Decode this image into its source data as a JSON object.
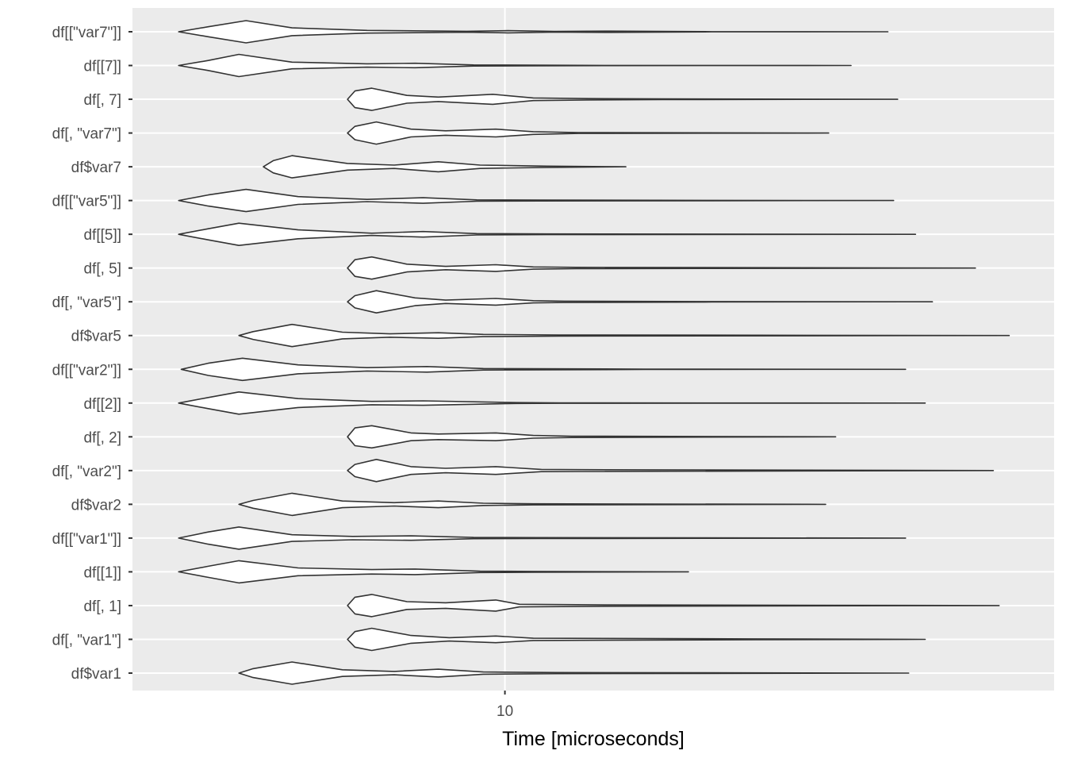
{
  "chart_data": {
    "type": "violin",
    "orientation": "horizontal",
    "xlabel": "Time [microseconds]",
    "ylabel": "",
    "x_scale": "log10",
    "xlim": [
      2.87,
      63.0
    ],
    "x_ticks": [
      10
    ],
    "x_tick_labels": [
      "10"
    ],
    "grid": true,
    "panel_background": "#ebebeb",
    "grid_color": "#ffffff",
    "violin_fill": "#ffffff",
    "violin_stroke": "#333333",
    "categories": [
      "df[[\"var7\"]]",
      "df[[7]]",
      "df[, 7]",
      "df[, \"var7\"]",
      "df$var7",
      "df[[\"var5\"]]",
      "df[[5]]",
      "df[, 5]",
      "df[, \"var5\"]",
      "df$var5",
      "df[[\"var2\"]]",
      "df[[2]]",
      "df[, 2]",
      "df[, \"var2\"]",
      "df$var2",
      "df[[\"var1\"]]",
      "df[[1]]",
      "df[, 1]",
      "df[, \"var1\"]",
      "df$var1"
    ],
    "series": [
      {
        "min": 3.35,
        "max": 36.1,
        "profile": [
          [
            3.35,
            0
          ],
          [
            3.7,
            0.45
          ],
          [
            4.2,
            1.0
          ],
          [
            4.9,
            0.35
          ],
          [
            6.3,
            0.12
          ],
          [
            8.8,
            0.04
          ],
          [
            10.1,
            0.1
          ],
          [
            11.8,
            0.03
          ],
          [
            14.2,
            0.06
          ],
          [
            20,
            0.01
          ],
          [
            36.1,
            0
          ]
        ]
      },
      {
        "min": 3.35,
        "max": 31.9,
        "profile": [
          [
            3.35,
            0
          ],
          [
            3.7,
            0.45
          ],
          [
            4.1,
            1.0
          ],
          [
            4.9,
            0.3
          ],
          [
            6.3,
            0.15
          ],
          [
            7.4,
            0.2
          ],
          [
            9.0,
            0.05
          ],
          [
            10.8,
            0.03
          ],
          [
            14,
            0.01
          ],
          [
            31.9,
            0
          ]
        ]
      },
      {
        "min": 5.9,
        "max": 37.3,
        "profile": [
          [
            5.9,
            0
          ],
          [
            6.05,
            0.75
          ],
          [
            6.4,
            1.0
          ],
          [
            7.2,
            0.35
          ],
          [
            8.0,
            0.2
          ],
          [
            9.6,
            0.45
          ],
          [
            11.0,
            0.12
          ],
          [
            13.2,
            0.06
          ],
          [
            17,
            0.03
          ],
          [
            37.3,
            0
          ]
        ]
      },
      {
        "min": 5.9,
        "max": 29.6,
        "profile": [
          [
            5.9,
            0
          ],
          [
            6.05,
            0.6
          ],
          [
            6.5,
            1.0
          ],
          [
            7.3,
            0.35
          ],
          [
            8.2,
            0.2
          ],
          [
            9.7,
            0.35
          ],
          [
            11.0,
            0.12
          ],
          [
            12.8,
            0.04
          ],
          [
            29.6,
            0
          ]
        ]
      },
      {
        "min": 4.45,
        "max": 15.0,
        "profile": [
          [
            4.45,
            0
          ],
          [
            4.6,
            0.55
          ],
          [
            4.9,
            1.0
          ],
          [
            5.9,
            0.3
          ],
          [
            6.9,
            0.15
          ],
          [
            8.0,
            0.45
          ],
          [
            9.2,
            0.15
          ],
          [
            11.5,
            0.06
          ],
          [
            15.0,
            0
          ]
        ]
      },
      {
        "min": 3.35,
        "max": 36.8,
        "profile": [
          [
            3.35,
            0
          ],
          [
            3.7,
            0.5
          ],
          [
            4.2,
            1.0
          ],
          [
            5.0,
            0.35
          ],
          [
            6.3,
            0.1
          ],
          [
            7.6,
            0.25
          ],
          [
            9.1,
            0.06
          ],
          [
            11.2,
            0.04
          ],
          [
            20,
            0.02
          ],
          [
            36.8,
            0
          ]
        ]
      },
      {
        "min": 3.35,
        "max": 39.6,
        "profile": [
          [
            3.35,
            0
          ],
          [
            3.7,
            0.5
          ],
          [
            4.1,
            1.0
          ],
          [
            5.0,
            0.4
          ],
          [
            6.4,
            0.1
          ],
          [
            7.6,
            0.25
          ],
          [
            9.1,
            0.06
          ],
          [
            11.5,
            0.03
          ],
          [
            39.6,
            0
          ]
        ]
      },
      {
        "min": 5.9,
        "max": 48.4,
        "profile": [
          [
            5.9,
            0
          ],
          [
            6.05,
            0.75
          ],
          [
            6.4,
            1.0
          ],
          [
            7.2,
            0.35
          ],
          [
            8.2,
            0.15
          ],
          [
            9.7,
            0.3
          ],
          [
            11.0,
            0.1
          ],
          [
            12.7,
            0.06
          ],
          [
            48.4,
            0
          ]
        ]
      },
      {
        "min": 5.9,
        "max": 41.9,
        "profile": [
          [
            5.9,
            0
          ],
          [
            6.05,
            0.55
          ],
          [
            6.5,
            1.0
          ],
          [
            7.4,
            0.35
          ],
          [
            8.2,
            0.15
          ],
          [
            9.7,
            0.3
          ],
          [
            11.0,
            0.1
          ],
          [
            12.2,
            0.06
          ],
          [
            20,
            0.02
          ],
          [
            41.9,
            0
          ]
        ]
      },
      {
        "min": 4.1,
        "max": 54.2,
        "profile": [
          [
            4.1,
            0
          ],
          [
            4.3,
            0.35
          ],
          [
            4.9,
            1.0
          ],
          [
            5.8,
            0.3
          ],
          [
            6.8,
            0.15
          ],
          [
            8.0,
            0.25
          ],
          [
            9.3,
            0.1
          ],
          [
            12.0,
            0.05
          ],
          [
            54.2,
            0
          ]
        ]
      },
      {
        "min": 3.38,
        "max": 38.3,
        "profile": [
          [
            3.38,
            0
          ],
          [
            3.7,
            0.55
          ],
          [
            4.15,
            1.0
          ],
          [
            5.0,
            0.4
          ],
          [
            6.3,
            0.15
          ],
          [
            7.7,
            0.25
          ],
          [
            9.3,
            0.07
          ],
          [
            16,
            0.02
          ],
          [
            38.3,
            0
          ]
        ]
      },
      {
        "min": 3.35,
        "max": 40.9,
        "profile": [
          [
            3.35,
            0
          ],
          [
            3.7,
            0.5
          ],
          [
            4.1,
            1.0
          ],
          [
            5.0,
            0.4
          ],
          [
            6.4,
            0.15
          ],
          [
            7.6,
            0.2
          ],
          [
            10.4,
            0.04
          ],
          [
            12,
            0.02
          ],
          [
            40.9,
            0
          ]
        ]
      },
      {
        "min": 5.9,
        "max": 30.3,
        "profile": [
          [
            5.9,
            0
          ],
          [
            6.05,
            0.8
          ],
          [
            6.4,
            1.0
          ],
          [
            7.3,
            0.35
          ],
          [
            8.0,
            0.25
          ],
          [
            9.7,
            0.35
          ],
          [
            11.0,
            0.12
          ],
          [
            12.5,
            0.06
          ],
          [
            30.3,
            0
          ]
        ]
      },
      {
        "min": 5.9,
        "max": 51.4,
        "profile": [
          [
            5.9,
            0
          ],
          [
            6.05,
            0.55
          ],
          [
            6.5,
            1.0
          ],
          [
            7.3,
            0.35
          ],
          [
            8.2,
            0.2
          ],
          [
            9.7,
            0.35
          ],
          [
            11.3,
            0.1
          ],
          [
            12.9,
            0.08
          ],
          [
            51.4,
            0
          ]
        ]
      },
      {
        "min": 4.1,
        "max": 29.3,
        "profile": [
          [
            4.1,
            0
          ],
          [
            4.3,
            0.35
          ],
          [
            4.9,
            1.0
          ],
          [
            5.8,
            0.3
          ],
          [
            6.9,
            0.15
          ],
          [
            8.0,
            0.3
          ],
          [
            9.3,
            0.1
          ],
          [
            11.0,
            0.05
          ],
          [
            29.3,
            0
          ]
        ]
      },
      {
        "min": 3.35,
        "max": 38.3,
        "profile": [
          [
            3.35,
            0
          ],
          [
            3.7,
            0.55
          ],
          [
            4.1,
            1.0
          ],
          [
            4.9,
            0.3
          ],
          [
            6.0,
            0.15
          ],
          [
            7.3,
            0.2
          ],
          [
            9.0,
            0.06
          ],
          [
            11.2,
            0.04
          ],
          [
            38.3,
            0
          ]
        ]
      },
      {
        "min": 3.35,
        "max": 18.5,
        "profile": [
          [
            3.35,
            0
          ],
          [
            3.7,
            0.5
          ],
          [
            4.1,
            1.0
          ],
          [
            5.0,
            0.35
          ],
          [
            6.4,
            0.2
          ],
          [
            7.4,
            0.25
          ],
          [
            9.2,
            0.06
          ],
          [
            11.0,
            0.04
          ],
          [
            18.5,
            0
          ]
        ]
      },
      {
        "min": 5.9,
        "max": 52.4,
        "profile": [
          [
            5.9,
            0
          ],
          [
            6.05,
            0.75
          ],
          [
            6.4,
            1.0
          ],
          [
            7.2,
            0.35
          ],
          [
            8.2,
            0.25
          ],
          [
            9.7,
            0.5
          ],
          [
            10.5,
            0.12
          ],
          [
            14,
            0.06
          ],
          [
            52.4,
            0
          ]
        ]
      },
      {
        "min": 5.9,
        "max": 40.9,
        "profile": [
          [
            5.9,
            0
          ],
          [
            6.05,
            0.7
          ],
          [
            6.4,
            1.0
          ],
          [
            7.3,
            0.35
          ],
          [
            8.3,
            0.15
          ],
          [
            9.7,
            0.3
          ],
          [
            11.0,
            0.1
          ],
          [
            23,
            0.04
          ],
          [
            40.9,
            0
          ]
        ]
      },
      {
        "min": 4.1,
        "max": 38.7,
        "profile": [
          [
            4.1,
            0
          ],
          [
            4.3,
            0.4
          ],
          [
            4.9,
            1.0
          ],
          [
            5.8,
            0.3
          ],
          [
            6.9,
            0.15
          ],
          [
            8.0,
            0.35
          ],
          [
            9.3,
            0.1
          ],
          [
            11.9,
            0.05
          ],
          [
            38.7,
            0
          ]
        ]
      }
    ]
  }
}
